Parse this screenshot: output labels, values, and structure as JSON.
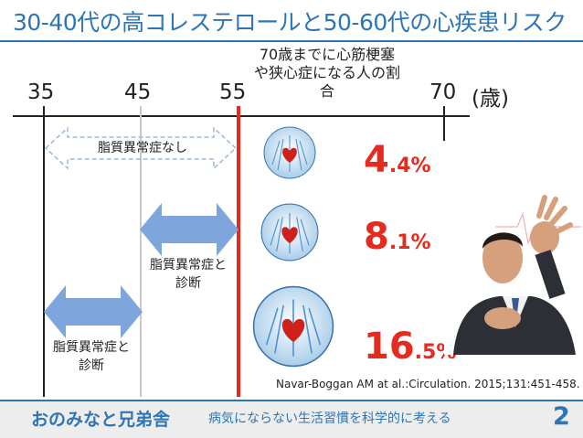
{
  "slide": {
    "title": "30-40代の高コレステロールと50-60代の心疾患リスク",
    "note": "70歳までに心筋梗塞や狭心症になる人の割合",
    "citation": "Navar-Boggan AM at al.:Circulation. 2015;131:451-458.",
    "page_number": "2"
  },
  "axis": {
    "ticks": [
      "35",
      "45",
      "55",
      "70"
    ],
    "unit": "(歳)"
  },
  "groups": [
    {
      "label": "脂質異常症なし",
      "pct_big": "4",
      "pct_small": ".4%",
      "percent": 4.4
    },
    {
      "label": "脂質異常症と診断",
      "pct_big": "8",
      "pct_small": ".1%",
      "percent": 8.1
    },
    {
      "label": "脂質異常症と診断",
      "pct_big": "16",
      "pct_small": ".5%",
      "percent": 16.5
    }
  ],
  "footer": {
    "brand": "おのみなと兄弟舎",
    "tagline": "病気にならない生活習慣を科学的に考える"
  },
  "colors": {
    "accent": "#2e75b6",
    "risk_red": "#e62b1e",
    "arrow_blue": "#7ea6dd",
    "footer_bg": "#ededed"
  },
  "icons": [
    "heart-anatomy-icon",
    "chest-pain-photo"
  ]
}
